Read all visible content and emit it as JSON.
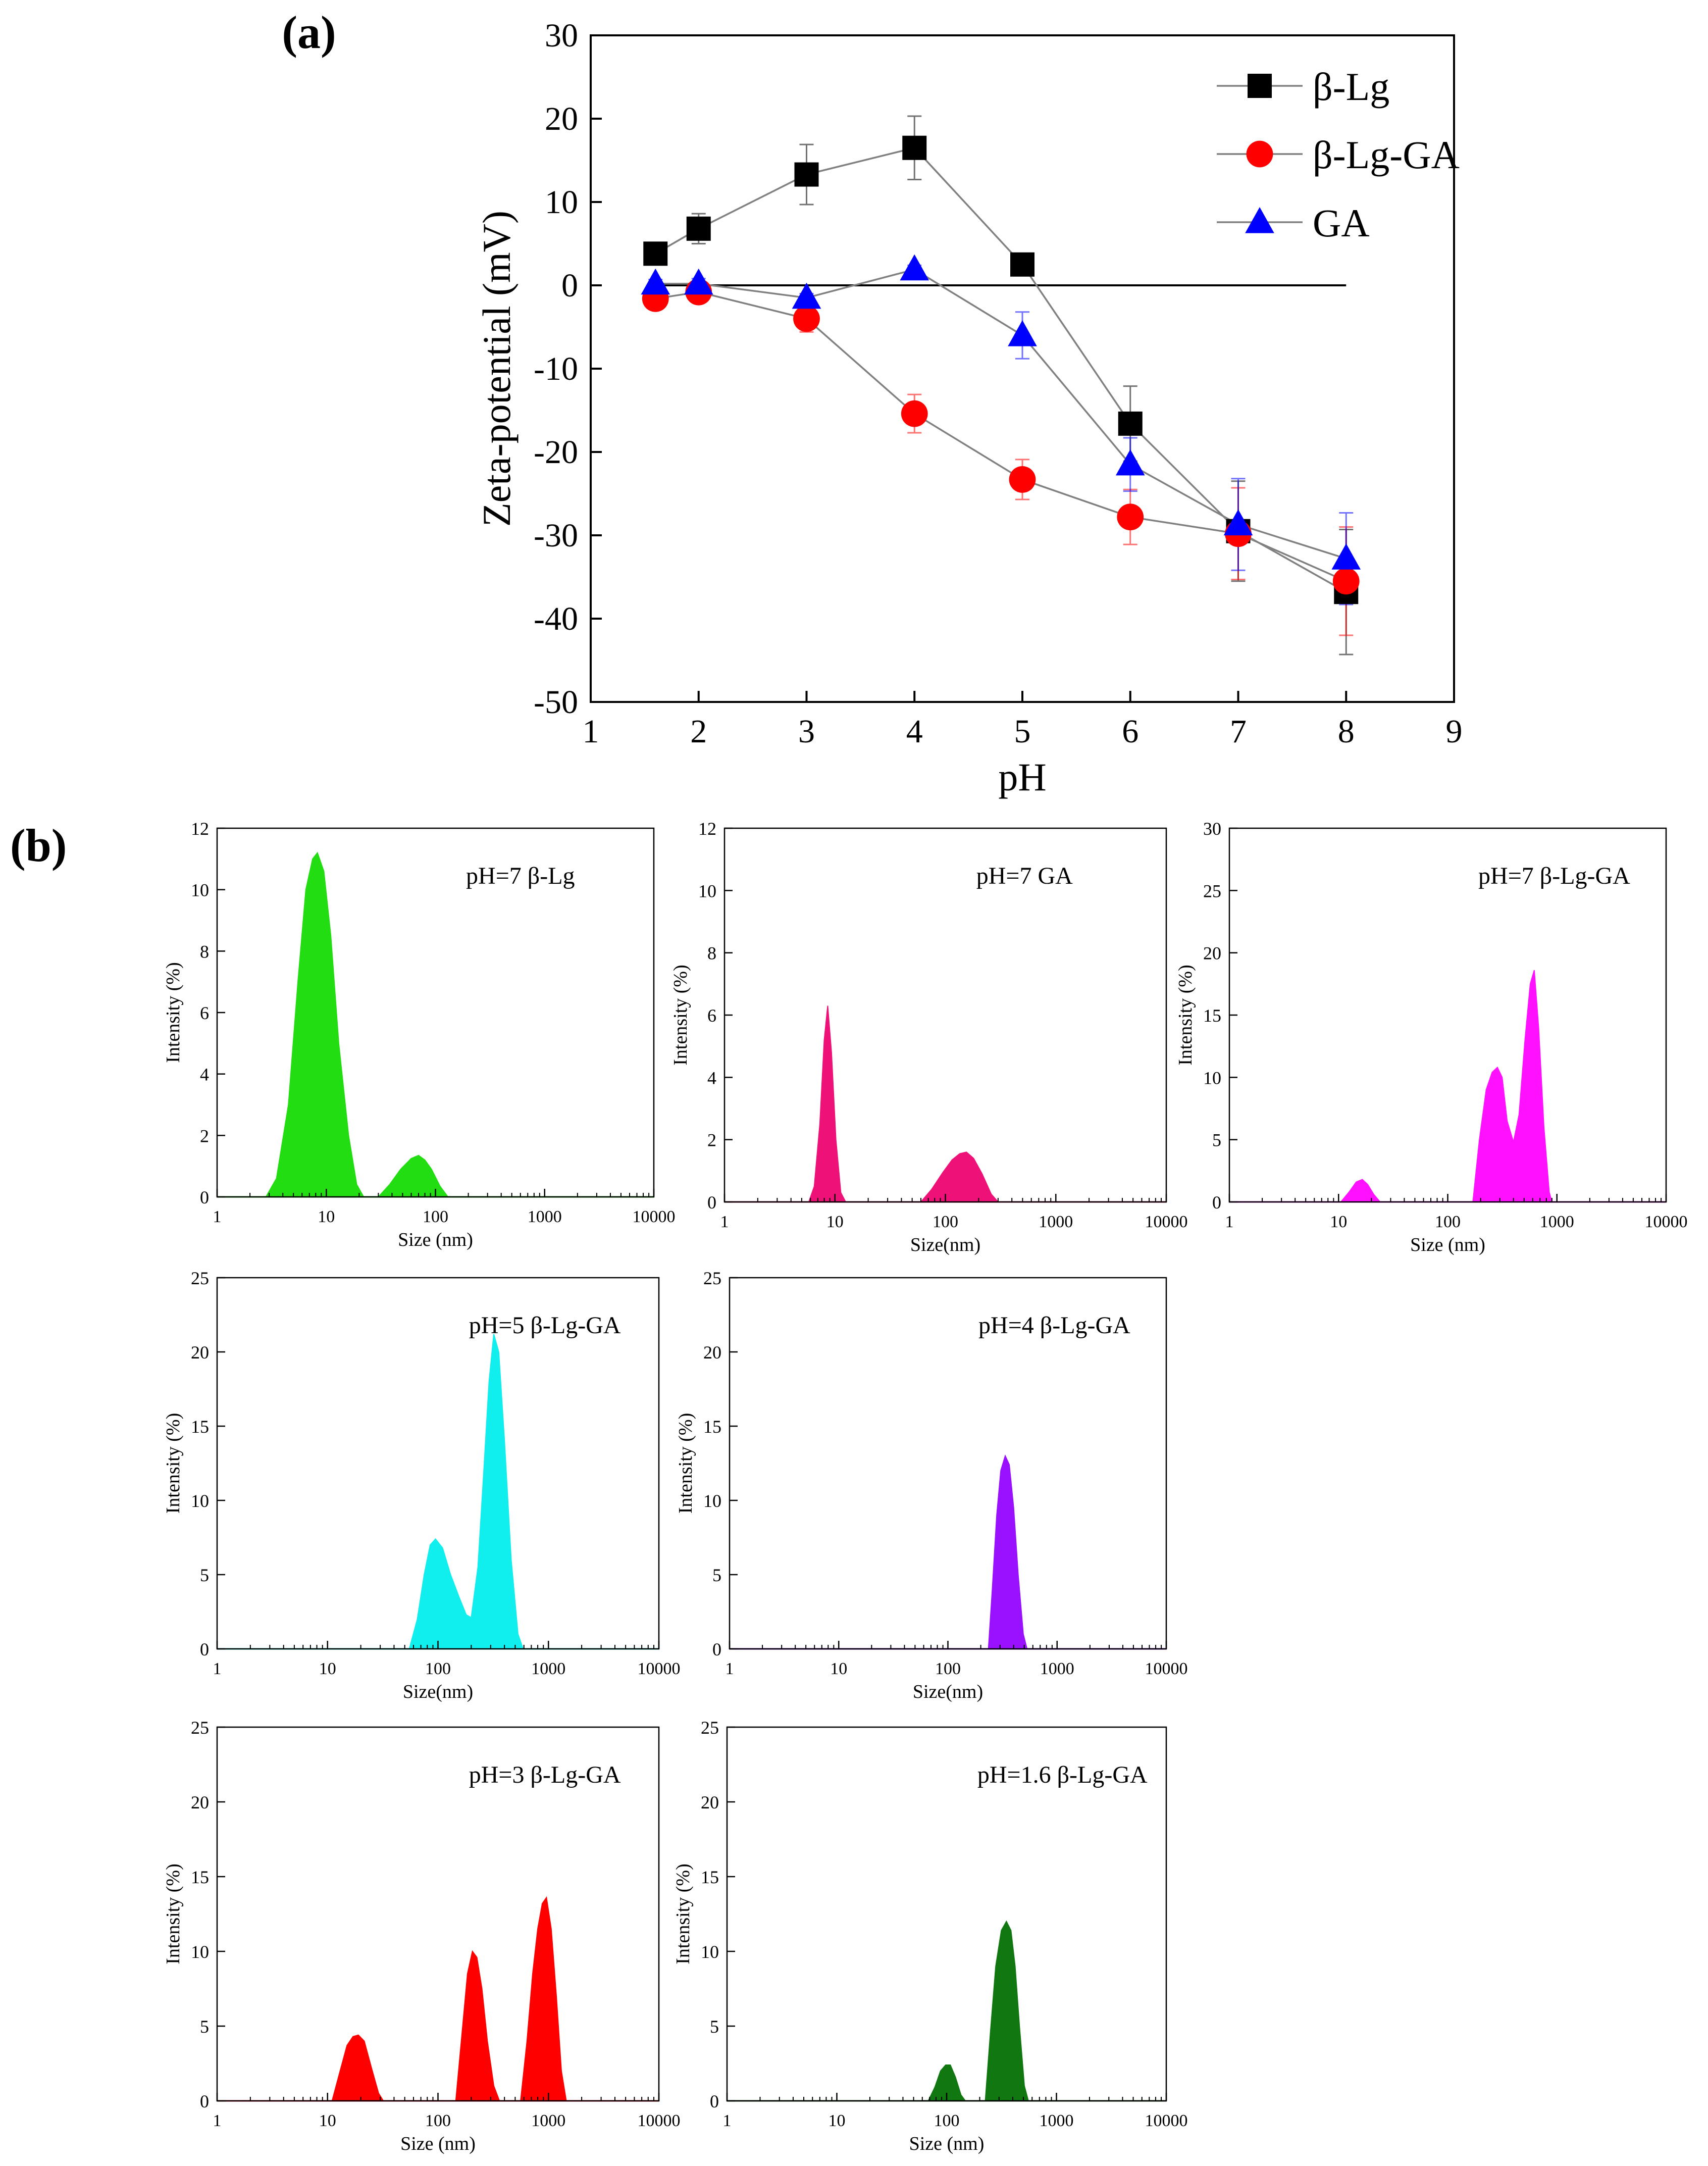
{
  "panel_labels": {
    "a": "(a)",
    "b": "(b)"
  },
  "colors": {
    "beta_lg": "#000000",
    "beta_lg_ga": "#ff0000",
    "ga": "#0000ff",
    "zero_line": "#000000",
    "connector": "#808080"
  },
  "chart_data": [
    {
      "id": "zeta",
      "type": "line",
      "xlabel": "pH",
      "ylabel": "Zeta-potential (mV)",
      "xlim": [
        1,
        9
      ],
      "ylim": [
        -50,
        30
      ],
      "xticks": [
        1,
        2,
        3,
        4,
        5,
        6,
        7,
        8,
        9
      ],
      "yticks": [
        -50,
        -40,
        -30,
        -20,
        -10,
        0,
        10,
        20,
        30
      ],
      "zero_line": {
        "x_from": 1.6,
        "x_to": 8,
        "y": 0
      },
      "series": [
        {
          "name": "β-Lg",
          "marker": "square",
          "color": "#000000",
          "x": [
            1.6,
            2,
            3,
            4,
            5,
            6,
            7,
            8
          ],
          "y": [
            3.8,
            6.8,
            13.3,
            16.5,
            2.5,
            -16.6,
            -29.5,
            -36.8
          ],
          "err": [
            1.2,
            1.8,
            3.6,
            3.8,
            0.6,
            4.5,
            6.0,
            7.5
          ]
        },
        {
          "name": "β-Lg-GA",
          "marker": "circle",
          "color": "#ff0000",
          "x": [
            1.6,
            2,
            3,
            4,
            5,
            6,
            7,
            8
          ],
          "y": [
            -1.6,
            -0.8,
            -4.0,
            -15.4,
            -23.3,
            -27.8,
            -29.8,
            -35.5
          ],
          "err": [
            0.5,
            0.6,
            1.6,
            2.3,
            2.4,
            3.3,
            5.5,
            6.5
          ]
        },
        {
          "name": "GA",
          "marker": "triangle",
          "color": "#0000ff",
          "x": [
            1.6,
            2,
            3,
            4,
            5,
            6,
            7,
            8
          ],
          "y": [
            0.2,
            0.2,
            -1.5,
            1.9,
            -6.0,
            -21.5,
            -28.7,
            -32.8
          ],
          "err": [
            0.5,
            0.6,
            0.5,
            0.5,
            2.8,
            3.2,
            5.5,
            5.5
          ]
        }
      ]
    },
    {
      "id": "dls1",
      "type": "area",
      "label": "pH=7  β-Lg",
      "color": "#22dd11",
      "xlabel": "Size (nm)",
      "ylabel": "Intensity (%)",
      "ylim": [
        0,
        12
      ],
      "yticks": [
        0,
        2,
        4,
        6,
        8,
        10,
        12
      ],
      "xticks": [
        1,
        10,
        100,
        1000,
        10000
      ],
      "xticklabels": [
        "1",
        "10",
        "100",
        "1000",
        "10000"
      ],
      "peaks": [
        {
          "x": [
            2.8,
            3.5,
            4.5,
            5.5,
            6.5,
            7.5,
            8.3,
            9.5,
            11,
            13,
            16,
            19,
            22
          ],
          "y": [
            0,
            0.6,
            3.0,
            7.0,
            10.0,
            11.0,
            11.2,
            10.6,
            8.5,
            5.0,
            2.0,
            0.4,
            0
          ]
        },
        {
          "x": [
            30,
            38,
            48,
            60,
            70,
            80,
            92,
            110,
            130
          ],
          "y": [
            0,
            0.4,
            0.9,
            1.25,
            1.35,
            1.2,
            0.9,
            0.35,
            0
          ]
        }
      ]
    },
    {
      "id": "dls2",
      "type": "area",
      "label": "pH=7  GA",
      "color": "#ee1177",
      "xlabel": "Size(nm)",
      "ylabel": "Intensity (%)",
      "ylim": [
        0,
        12
      ],
      "yticks": [
        0,
        2,
        4,
        6,
        8,
        10,
        12
      ],
      "xticks": [
        1,
        10,
        100,
        1000,
        10000
      ],
      "xticklabels": [
        "1",
        "10",
        "100",
        "1000",
        "10000"
      ],
      "peaks": [
        {
          "x": [
            5.8,
            6.5,
            7.3,
            8.0,
            8.6,
            9.3,
            10.2,
            11.3,
            12.5
          ],
          "y": [
            0,
            0.5,
            2.5,
            5.2,
            6.3,
            4.8,
            2.0,
            0.3,
            0
          ]
        },
        {
          "x": [
            60,
            75,
            95,
            115,
            135,
            155,
            180,
            215,
            260,
            300
          ],
          "y": [
            0,
            0.4,
            0.95,
            1.35,
            1.55,
            1.6,
            1.4,
            0.9,
            0.25,
            0
          ]
        }
      ]
    },
    {
      "id": "dls3",
      "type": "area",
      "label": "pH=7  β-Lg-GA",
      "color": "#ff11ff",
      "xlabel": "Size (nm)",
      "ylabel": "Intensity (%)",
      "ylim": [
        0,
        30
      ],
      "yticks": [
        0,
        5,
        10,
        15,
        20,
        25,
        30
      ],
      "xticks": [
        1,
        10,
        100,
        1000,
        10000
      ],
      "xticklabels": [
        "1",
        "10",
        "100",
        "1000",
        "10000"
      ],
      "peaks": [
        {
          "x": [
            10.5,
            12.5,
            14.5,
            16.5,
            18.5,
            21,
            24
          ],
          "y": [
            0,
            0.8,
            1.6,
            1.8,
            1.4,
            0.6,
            0
          ]
        },
        {
          "x": [
            170,
            195,
            225,
            255,
            285,
            315,
            350,
            400,
            450,
            510,
            570,
            620,
            680,
            760,
            850,
            900
          ],
          "y": [
            0,
            5.0,
            9.0,
            10.4,
            10.8,
            10.0,
            6.5,
            4.8,
            7.0,
            13.0,
            17.5,
            18.6,
            14.0,
            6.0,
            0.8,
            0
          ]
        }
      ]
    },
    {
      "id": "dls4",
      "type": "area",
      "label": "pH=5  β-Lg-GA",
      "color": "#11eeee",
      "xlabel": "Size(nm)",
      "ylabel": "Intensity (%)",
      "ylim": [
        0,
        25
      ],
      "yticks": [
        0,
        5,
        10,
        15,
        20,
        25
      ],
      "xticks": [
        1,
        10,
        100,
        1000,
        10000
      ],
      "xticklabels": [
        "1",
        "10",
        "100",
        "1000",
        "10000"
      ],
      "peaks": [
        {
          "x": [
            55,
            65,
            75,
            85,
            95,
            110,
            130,
            155,
            180,
            200,
            230,
            260,
            290,
            320,
            355,
            400,
            460,
            530,
            590
          ],
          "y": [
            0,
            2.0,
            5.0,
            7.0,
            7.4,
            6.8,
            5.0,
            3.5,
            2.3,
            2.1,
            5.5,
            12.0,
            18.0,
            21.2,
            20.0,
            14.0,
            6.0,
            1.0,
            0
          ]
        }
      ]
    },
    {
      "id": "dls5",
      "type": "area",
      "label": "pH=4  β-Lg-GA",
      "color": "#9911ff",
      "xlabel": "Size(nm)",
      "ylabel": "Intensity (%)",
      "ylim": [
        0,
        25
      ],
      "yticks": [
        0,
        5,
        10,
        15,
        20,
        25
      ],
      "xticks": [
        1,
        10,
        100,
        1000,
        10000
      ],
      "xticklabels": [
        "1",
        "10",
        "100",
        "1000",
        "10000"
      ],
      "peaks": [
        {
          "x": [
            235,
            255,
            280,
            305,
            335,
            365,
            400,
            440,
            490,
            530
          ],
          "y": [
            0,
            4.0,
            9.0,
            12.0,
            13.0,
            12.4,
            9.5,
            5.0,
            1.0,
            0
          ]
        }
      ]
    },
    {
      "id": "dls6",
      "type": "area",
      "label": "pH=3  β-Lg-GA",
      "color": "#ff0000",
      "xlabel": "Size (nm)",
      "ylabel": "Intensity (%)",
      "ylim": [
        0,
        25
      ],
      "yticks": [
        0,
        5,
        10,
        15,
        20,
        25
      ],
      "xticks": [
        1,
        10,
        100,
        1000,
        10000
      ],
      "xticklabels": [
        "1",
        "10",
        "100",
        "1000",
        "10000"
      ],
      "peaks": [
        {
          "x": [
            11,
            13,
            15,
            17,
            19,
            21.5,
            25,
            29,
            32
          ],
          "y": [
            0,
            2.0,
            3.7,
            4.3,
            4.4,
            4.0,
            2.2,
            0.5,
            0
          ]
        },
        {
          "x": [
            145,
            165,
            185,
            205,
            225,
            250,
            280,
            320,
            360
          ],
          "y": [
            0,
            4.5,
            8.5,
            10.0,
            9.6,
            7.5,
            4.0,
            1.0,
            0
          ]
        },
        {
          "x": [
            560,
            640,
            720,
            800,
            880,
            960,
            1060,
            1180,
            1310,
            1450
          ],
          "y": [
            0,
            4.0,
            8.5,
            11.5,
            13.2,
            13.6,
            11.5,
            7.0,
            2.0,
            0
          ]
        }
      ]
    },
    {
      "id": "dls7",
      "type": "area",
      "label": "pH=1.6  β-Lg-GA",
      "color": "#117711",
      "xlabel": "Size (nm)",
      "ylabel": "Intensity (%)",
      "ylim": [
        0,
        25
      ],
      "yticks": [
        0,
        5,
        10,
        15,
        20,
        25
      ],
      "xticks": [
        1,
        10,
        100,
        1000,
        10000
      ],
      "xticklabels": [
        "1",
        "10",
        "100",
        "1000",
        "10000"
      ],
      "peaks": [
        {
          "x": [
            68,
            78,
            88,
            98,
            108,
            120,
            135,
            148
          ],
          "y": [
            0,
            0.9,
            2.0,
            2.4,
            2.4,
            1.6,
            0.4,
            0
          ]
        },
        {
          "x": [
            225,
            250,
            280,
            315,
            350,
            385,
            420,
            460,
            510,
            555
          ],
          "y": [
            0,
            4.5,
            9.0,
            11.4,
            12.0,
            11.4,
            9.0,
            5.0,
            1.0,
            0
          ]
        }
      ]
    }
  ]
}
